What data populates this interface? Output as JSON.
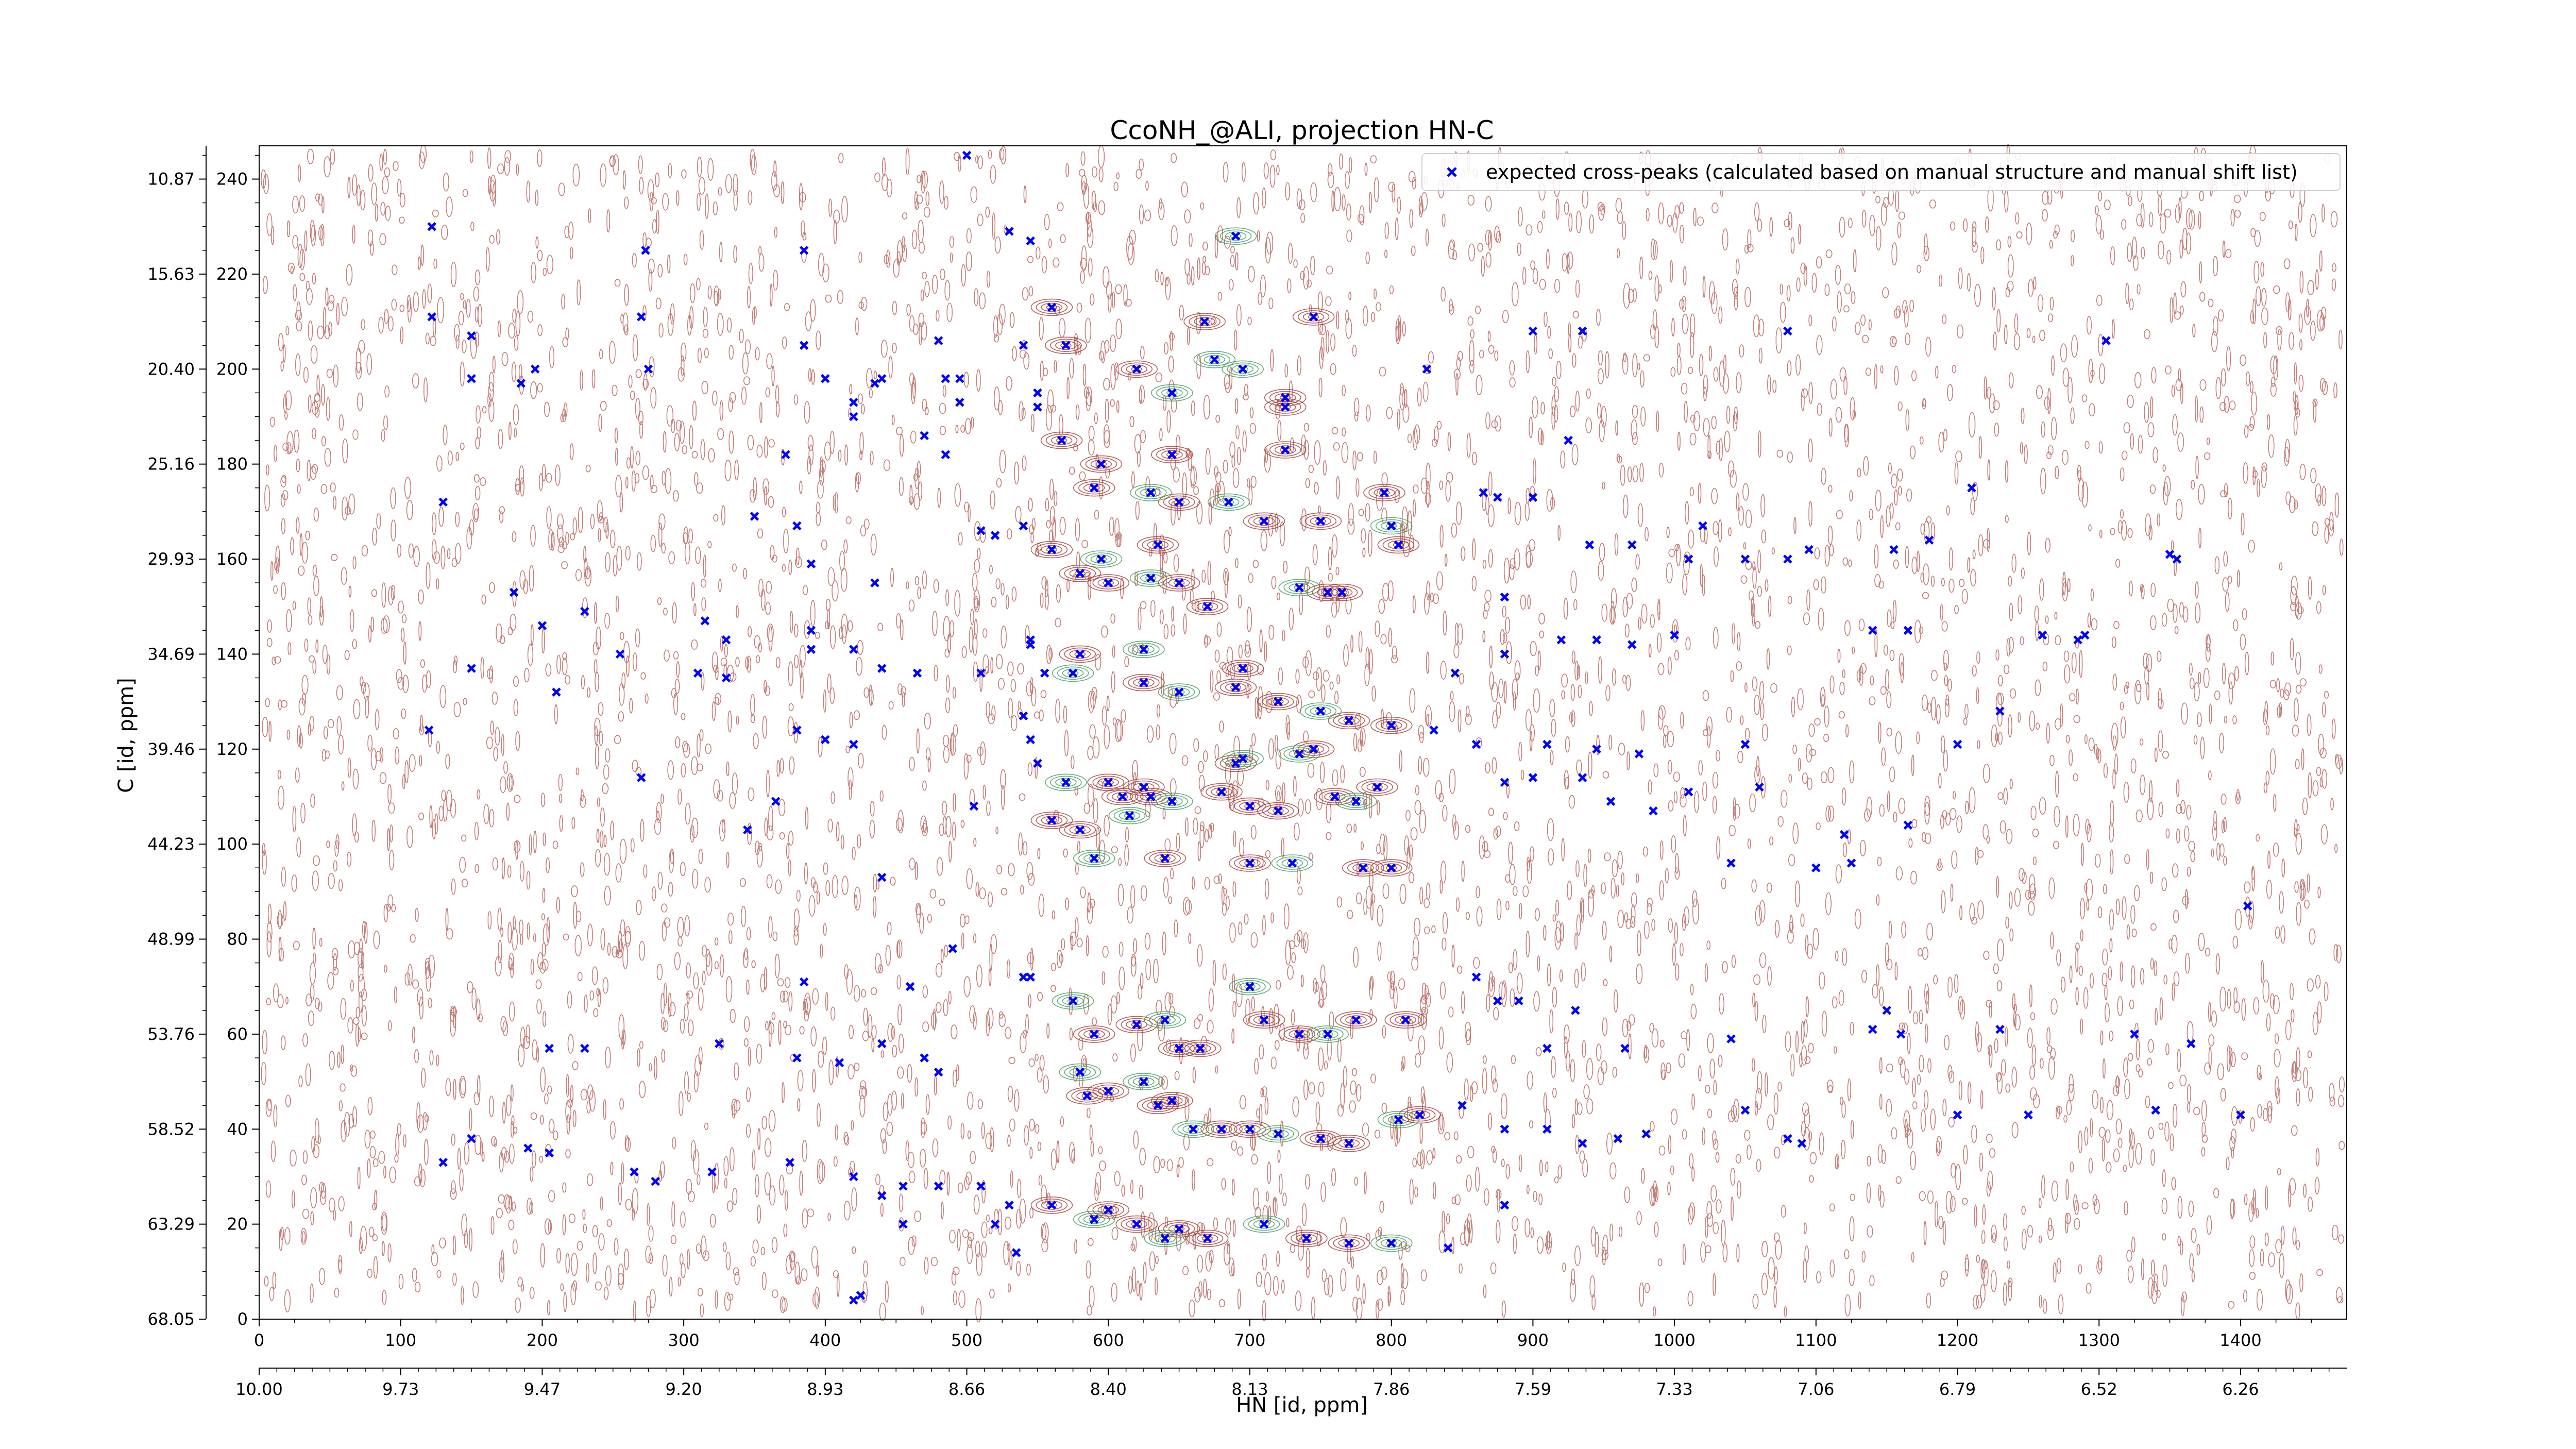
{
  "chart_data": {
    "type": "scatter",
    "title": "CcoNH_@ALI, projection HN-C",
    "xlabel": "HN [id, ppm]",
    "ylabel": "C [id, ppm]",
    "xlim": [
      0,
      1475
    ],
    "ylim": [
      0,
      247
    ],
    "x_index_ticks": [
      "0",
      "100",
      "200",
      "300",
      "400",
      "500",
      "600",
      "700",
      "800",
      "900",
      "1000",
      "1100",
      "1200",
      "1300",
      "1400"
    ],
    "x_index_tick_values": [
      0,
      100,
      200,
      300,
      400,
      500,
      600,
      700,
      800,
      900,
      1000,
      1100,
      1200,
      1300,
      1400
    ],
    "x_ppm_ticks": [
      "10.00",
      "9.73",
      "9.47",
      "9.20",
      "8.93",
      "8.66",
      "8.40",
      "8.13",
      "7.86",
      "7.59",
      "7.33",
      "7.06",
      "6.79",
      "6.52",
      "6.26"
    ],
    "y_index_ticks": [
      "0",
      "20",
      "40",
      "60",
      "80",
      "100",
      "120",
      "140",
      "160",
      "180",
      "200",
      "220",
      "240"
    ],
    "y_index_tick_values": [
      0,
      20,
      40,
      60,
      80,
      100,
      120,
      140,
      160,
      180,
      200,
      220,
      240
    ],
    "y_ppm_ticks": [
      "68.05",
      "63.29",
      "58.52",
      "53.76",
      "48.99",
      "44.23",
      "39.46",
      "34.69",
      "29.93",
      "25.16",
      "20.40",
      "15.63",
      "10.87"
    ],
    "grid": false,
    "legend_position": "top-right",
    "series": [
      {
        "name": "expected cross-peaks (calculated based on manual structure and manual shift list)",
        "color": "#0000ff",
        "marker": "x",
        "points": [
          [
            500,
            245
          ],
          [
            122,
            230
          ],
          [
            273,
            225
          ],
          [
            385,
            225
          ],
          [
            530,
            229
          ],
          [
            545,
            227
          ],
          [
            690,
            228
          ],
          [
            560,
            213
          ],
          [
            745,
            211
          ],
          [
            122,
            211
          ],
          [
            270,
            211
          ],
          [
            668,
            210
          ],
          [
            900,
            208
          ],
          [
            935,
            208
          ],
          [
            1080,
            208
          ],
          [
            1305,
            206
          ],
          [
            150,
            207
          ],
          [
            385,
            205
          ],
          [
            480,
            206
          ],
          [
            540,
            205
          ],
          [
            570,
            205
          ],
          [
            675,
            202
          ],
          [
            825,
            200
          ],
          [
            620,
            200
          ],
          [
            695,
            200
          ],
          [
            150,
            198
          ],
          [
            185,
            197
          ],
          [
            195,
            200
          ],
          [
            275,
            200
          ],
          [
            400,
            198
          ],
          [
            440,
            198
          ],
          [
            485,
            198
          ],
          [
            495,
            198
          ],
          [
            645,
            195
          ],
          [
            725,
            194
          ],
          [
            725,
            192
          ],
          [
            420,
            190
          ],
          [
            495,
            193
          ],
          [
            550,
            195
          ],
          [
            420,
            193
          ],
          [
            435,
            197
          ],
          [
            550,
            192
          ],
          [
            470,
            186
          ],
          [
            567,
            185
          ],
          [
            725,
            183
          ],
          [
            925,
            185
          ],
          [
            645,
            182
          ],
          [
            485,
            182
          ],
          [
            372,
            182
          ],
          [
            595,
            180
          ],
          [
            590,
            175
          ],
          [
            630,
            174
          ],
          [
            795,
            174
          ],
          [
            865,
            174
          ],
          [
            875,
            173
          ],
          [
            900,
            173
          ],
          [
            650,
            172
          ],
          [
            685,
            172
          ],
          [
            710,
            168
          ],
          [
            750,
            168
          ],
          [
            800,
            167
          ],
          [
            1210,
            175
          ],
          [
            130,
            172
          ],
          [
            350,
            169
          ],
          [
            380,
            167
          ],
          [
            540,
            167
          ],
          [
            510,
            166
          ],
          [
            520,
            165
          ],
          [
            560,
            162
          ],
          [
            595,
            160
          ],
          [
            635,
            163
          ],
          [
            1020,
            167
          ],
          [
            1180,
            164
          ],
          [
            805,
            163
          ],
          [
            940,
            163
          ],
          [
            970,
            163
          ],
          [
            1095,
            162
          ],
          [
            1155,
            162
          ],
          [
            1350,
            161
          ],
          [
            1355,
            160
          ],
          [
            390,
            159
          ],
          [
            435,
            155
          ],
          [
            580,
            157
          ],
          [
            600,
            155
          ],
          [
            630,
            156
          ],
          [
            650,
            155
          ],
          [
            670,
            150
          ],
          [
            735,
            154
          ],
          [
            755,
            153
          ],
          [
            765,
            153
          ],
          [
            880,
            152
          ],
          [
            1080,
            160
          ],
          [
            1010,
            160
          ],
          [
            1050,
            160
          ],
          [
            180,
            153
          ],
          [
            200,
            146
          ],
          [
            230,
            149
          ],
          [
            255,
            140
          ],
          [
            315,
            147
          ],
          [
            330,
            143
          ],
          [
            390,
            145
          ],
          [
            420,
            141
          ],
          [
            510,
            136
          ],
          [
            545,
            143
          ],
          [
            545,
            142
          ],
          [
            625,
            141
          ],
          [
            695,
            137
          ],
          [
            845,
            136
          ],
          [
            880,
            140
          ],
          [
            920,
            143
          ],
          [
            945,
            143
          ],
          [
            970,
            142
          ],
          [
            1000,
            144
          ],
          [
            1260,
            144
          ],
          [
            1140,
            145
          ],
          [
            1165,
            145
          ],
          [
            1290,
            144
          ],
          [
            1285,
            143
          ],
          [
            150,
            137
          ],
          [
            210,
            132
          ],
          [
            310,
            136
          ],
          [
            330,
            135
          ],
          [
            390,
            141
          ],
          [
            440,
            137
          ],
          [
            465,
            136
          ],
          [
            555,
            136
          ],
          [
            575,
            136
          ],
          [
            580,
            140
          ],
          [
            625,
            134
          ],
          [
            650,
            132
          ],
          [
            690,
            133
          ],
          [
            720,
            130
          ],
          [
            750,
            128
          ],
          [
            770,
            126
          ],
          [
            800,
            125
          ],
          [
            830,
            124
          ],
          [
            860,
            121
          ],
          [
            910,
            121
          ],
          [
            945,
            120
          ],
          [
            975,
            119
          ],
          [
            1050,
            121
          ],
          [
            1200,
            121
          ],
          [
            1230,
            128
          ],
          [
            120,
            124
          ],
          [
            380,
            124
          ],
          [
            400,
            122
          ],
          [
            420,
            121
          ],
          [
            540,
            127
          ],
          [
            545,
            122
          ],
          [
            550,
            117
          ],
          [
            570,
            113
          ],
          [
            600,
            113
          ],
          [
            610,
            110
          ],
          [
            615,
            106
          ],
          [
            625,
            112
          ],
          [
            630,
            110
          ],
          [
            645,
            109
          ],
          [
            680,
            111
          ],
          [
            690,
            117
          ],
          [
            695,
            118
          ],
          [
            700,
            108
          ],
          [
            720,
            107
          ],
          [
            735,
            119
          ],
          [
            745,
            120
          ],
          [
            760,
            110
          ],
          [
            775,
            109
          ],
          [
            790,
            112
          ],
          [
            880,
            113
          ],
          [
            900,
            114
          ],
          [
            935,
            114
          ],
          [
            955,
            109
          ],
          [
            985,
            107
          ],
          [
            1010,
            111
          ],
          [
            1165,
            104
          ],
          [
            1120,
            102
          ],
          [
            1125,
            96
          ],
          [
            1405,
            87
          ],
          [
            1060,
            112
          ],
          [
            270,
            114
          ],
          [
            365,
            109
          ],
          [
            505,
            108
          ],
          [
            560,
            105
          ],
          [
            580,
            103
          ],
          [
            590,
            97
          ],
          [
            640,
            97
          ],
          [
            700,
            96
          ],
          [
            730,
            96
          ],
          [
            780,
            95
          ],
          [
            800,
            95
          ],
          [
            1040,
            96
          ],
          [
            1100,
            95
          ],
          [
            440,
            93
          ],
          [
            345,
            103
          ],
          [
            490,
            78
          ],
          [
            385,
            71
          ],
          [
            460,
            70
          ],
          [
            540,
            72
          ],
          [
            545,
            72
          ],
          [
            575,
            67
          ],
          [
            590,
            60
          ],
          [
            620,
            62
          ],
          [
            640,
            63
          ],
          [
            650,
            57
          ],
          [
            665,
            57
          ],
          [
            700,
            70
          ],
          [
            710,
            63
          ],
          [
            735,
            60
          ],
          [
            755,
            60
          ],
          [
            775,
            63
          ],
          [
            810,
            63
          ],
          [
            860,
            72
          ],
          [
            875,
            67
          ],
          [
            890,
            67
          ],
          [
            910,
            57
          ],
          [
            930,
            65
          ],
          [
            965,
            57
          ],
          [
            1040,
            59
          ],
          [
            1140,
            61
          ],
          [
            1150,
            65
          ],
          [
            1160,
            60
          ],
          [
            1230,
            61
          ],
          [
            1325,
            60
          ],
          [
            1365,
            58
          ],
          [
            205,
            57
          ],
          [
            230,
            57
          ],
          [
            325,
            58
          ],
          [
            380,
            55
          ],
          [
            410,
            54
          ],
          [
            440,
            58
          ],
          [
            470,
            55
          ],
          [
            480,
            52
          ],
          [
            580,
            52
          ],
          [
            585,
            47
          ],
          [
            600,
            48
          ],
          [
            625,
            50
          ],
          [
            635,
            45
          ],
          [
            645,
            46
          ],
          [
            660,
            40
          ],
          [
            680,
            40
          ],
          [
            700,
            40
          ],
          [
            720,
            39
          ],
          [
            750,
            38
          ],
          [
            770,
            37
          ],
          [
            805,
            42
          ],
          [
            820,
            43
          ],
          [
            850,
            45
          ],
          [
            880,
            40
          ],
          [
            910,
            40
          ],
          [
            935,
            37
          ],
          [
            960,
            38
          ],
          [
            980,
            39
          ],
          [
            1050,
            44
          ],
          [
            1080,
            38
          ],
          [
            1090,
            37
          ],
          [
            1200,
            43
          ],
          [
            1250,
            43
          ],
          [
            1340,
            44
          ],
          [
            1400,
            43
          ],
          [
            130,
            33
          ],
          [
            150,
            38
          ],
          [
            190,
            36
          ],
          [
            205,
            35
          ],
          [
            265,
            31
          ],
          [
            280,
            29
          ],
          [
            320,
            31
          ],
          [
            375,
            33
          ],
          [
            420,
            30
          ],
          [
            440,
            26
          ],
          [
            455,
            28
          ],
          [
            480,
            28
          ],
          [
            510,
            28
          ],
          [
            530,
            24
          ],
          [
            560,
            24
          ],
          [
            590,
            21
          ],
          [
            600,
            23
          ],
          [
            620,
            20
          ],
          [
            640,
            17
          ],
          [
            650,
            19
          ],
          [
            670,
            17
          ],
          [
            710,
            20
          ],
          [
            740,
            17
          ],
          [
            770,
            16
          ],
          [
            800,
            16
          ],
          [
            840,
            15
          ],
          [
            880,
            24
          ],
          [
            425,
            5
          ],
          [
            420,
            4
          ],
          [
            535,
            14
          ],
          [
            520,
            20
          ],
          [
            455,
            20
          ]
        ]
      }
    ]
  }
}
